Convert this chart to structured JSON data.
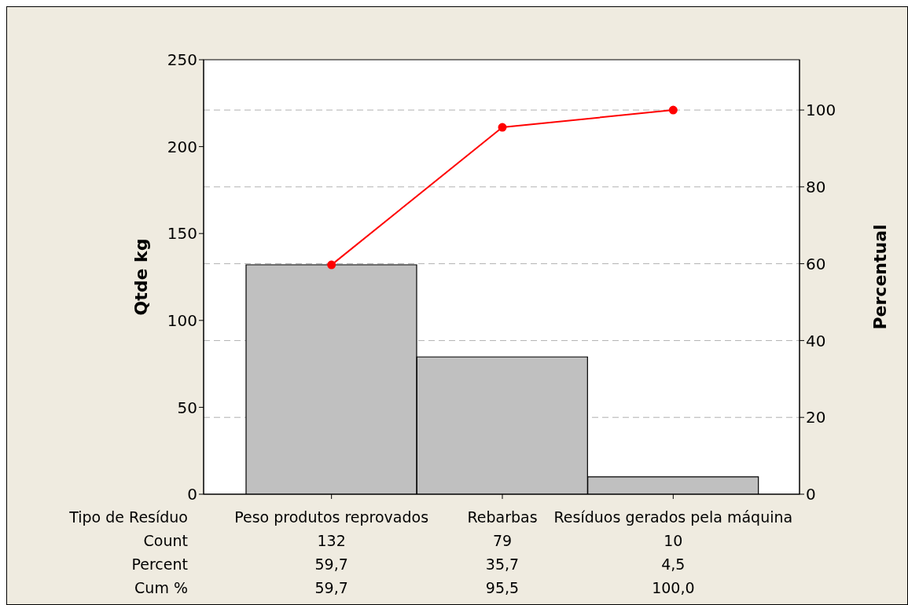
{
  "chart_data": {
    "type": "bar",
    "xlabel": "Tipo de Resíduo",
    "ylabel": "Qtde kg",
    "y2label": "Percentual",
    "categories": [
      "Peso produtos reprovados",
      "Rebarbas",
      "Resíduos gerados pela máquina"
    ],
    "series": [
      {
        "color": "#c0c0c0",
        "values": [
          132,
          79,
          10
        ],
        "value_labels": [
          "132",
          "79",
          "10"
        ]
      },
      {
        "type": "line",
        "axis": "y2",
        "color": "#ff0000",
        "values": [
          59.7,
          95.5,
          100
        ],
        "value_labels": [
          "59,7",
          "95,5",
          "100,0"
        ]
      }
    ],
    "annotations": [
      "Count",
      "Percent",
      "Cum %",
      "59,7",
      "35,7",
      "4,5"
    ],
    "ylim": [
      0,
      250
    ],
    "yticks": [
      0,
      50,
      100,
      150,
      200,
      250
    ],
    "y2lim": [
      0,
      113.1
    ],
    "y2ticks": [
      0,
      20,
      40,
      60,
      80,
      100
    ],
    "grid": "y",
    "legend": false,
    "marker": "circle",
    "line_style": "solid"
  }
}
